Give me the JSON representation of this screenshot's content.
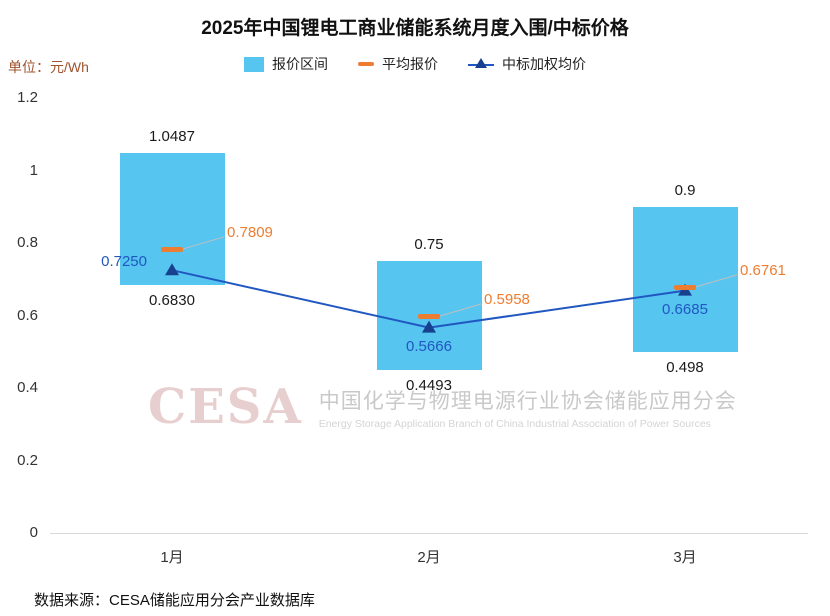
{
  "unit_label": "单位：元/Wh",
  "source": "数据来源：CESA储能应用分会产业数据库",
  "watermark": {
    "logo": "CESA",
    "line1": "中国化学与物理电源行业协会储能应用分会",
    "line2": "Energy Storage Application Branch of China Industrial Association of Power Sources"
  },
  "colors": {
    "bar": "#56C5F0",
    "orange": "#ED7D31",
    "line": "#2057C0",
    "marker": "#17418F",
    "axis": "#D9D9D9",
    "callout": "#BFBFBF",
    "unit_text": "#A0522D",
    "watermark_logo": "#E8CFCF",
    "watermark_text_cn": "#C9C9C9",
    "watermark_text_en": "#D4D4D4"
  },
  "chart_data": {
    "type": "bar",
    "title": "2025年中国锂电工商业储能系统月度入围/中标价格",
    "ylabel": "元/Wh",
    "categories": [
      "1月",
      "2月",
      "3月"
    ],
    "series": [
      {
        "name": "报价区间",
        "type": "range",
        "high": [
          1.0487,
          0.75,
          0.9
        ],
        "low": [
          0.683,
          0.4493,
          0.498
        ],
        "high_labels": [
          "1.0487",
          "0.75",
          "0.9"
        ],
        "low_labels": [
          "0.6830",
          "0.4493",
          "0.498"
        ]
      },
      {
        "name": "平均报价",
        "type": "dash",
        "values": [
          0.7809,
          0.5958,
          0.6761
        ],
        "labels": [
          "0.7809",
          "0.5958",
          "0.6761"
        ]
      },
      {
        "name": "中标加权均价",
        "type": "line",
        "values": [
          0.725,
          0.5666,
          0.6685
        ],
        "labels": [
          "0.7250",
          "0.5666",
          "0.6685"
        ]
      }
    ],
    "ylim": [
      0,
      1.2
    ],
    "yticks": [
      0,
      0.2,
      0.4,
      0.6,
      0.8,
      1,
      1.2
    ],
    "ytick_labels": [
      "0",
      "0.2",
      "0.4",
      "0.6",
      "0.8",
      "1",
      "1.2"
    ],
    "grid": false,
    "legend_position": "top"
  }
}
